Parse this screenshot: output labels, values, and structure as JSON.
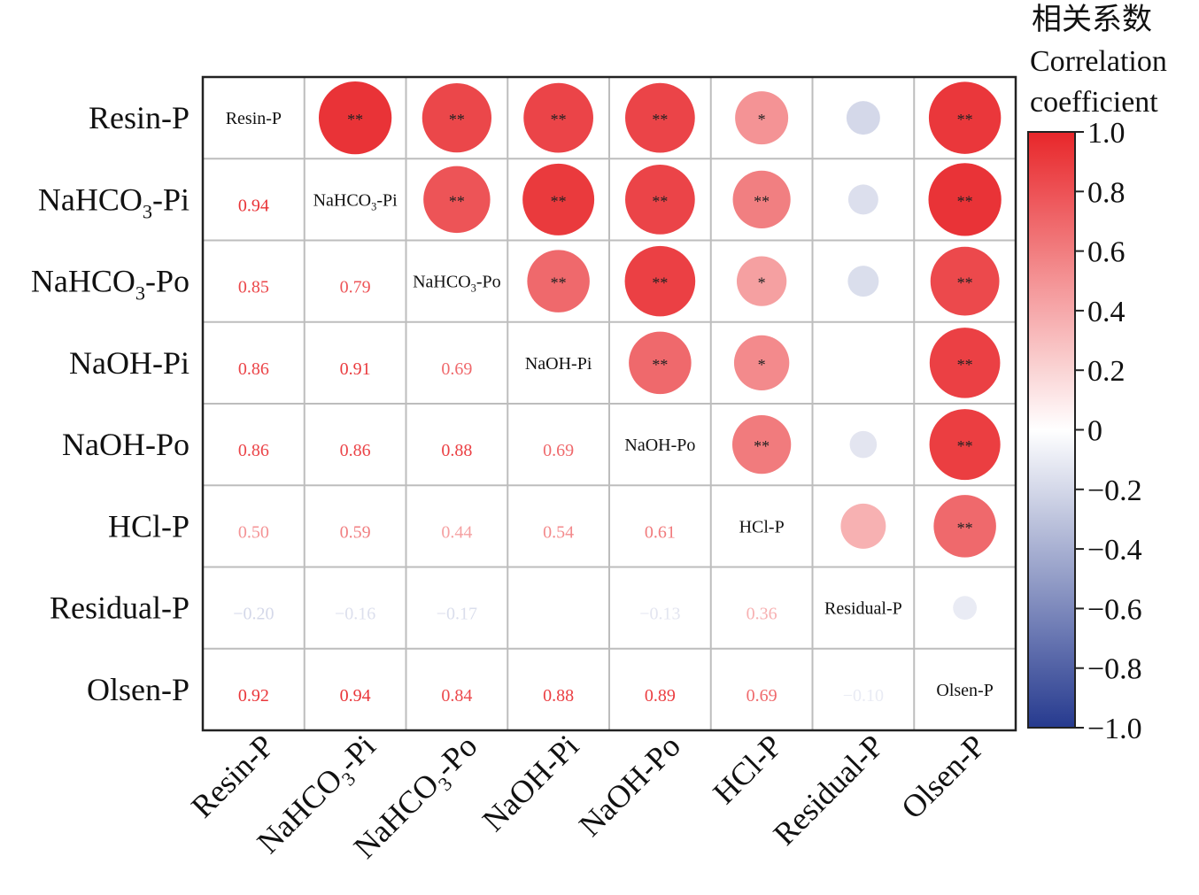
{
  "chart_data": {
    "type": "heatmap",
    "variables": [
      "Resin-P",
      "NaHCO3-Pi",
      "NaHCO3-Po",
      "NaOH-Pi",
      "NaOH-Po",
      "HCl-P",
      "Residual-P",
      "Olsen-P"
    ],
    "lower_triangle_values": [
      [
        null,
        null,
        null,
        null,
        null,
        null,
        null
      ],
      [
        0.94
      ],
      [
        0.85,
        0.79
      ],
      [
        0.86,
        0.91,
        0.69
      ],
      [
        0.86,
        0.86,
        0.88,
        0.69
      ],
      [
        0.5,
        0.59,
        0.44,
        0.54,
        0.61
      ],
      [
        -0.2,
        -0.16,
        -0.17,
        null,
        -0.13,
        0.36
      ],
      [
        0.92,
        0.94,
        0.84,
        0.88,
        0.89,
        0.69,
        -0.1
      ]
    ],
    "upper_triangle_significance": [
      [
        "",
        "**",
        "**",
        "**",
        "**",
        "*",
        "",
        "**"
      ],
      [
        "",
        "",
        "**",
        "**",
        "**",
        "**",
        "",
        "**"
      ],
      [
        "",
        "",
        "",
        "**",
        "**",
        "*",
        "",
        "**"
      ],
      [
        "",
        "",
        "",
        "",
        "**",
        "*",
        "",
        "**"
      ],
      [
        "",
        "",
        "",
        "",
        "",
        "**",
        "",
        "**"
      ],
      [
        "",
        "",
        "",
        "",
        "",
        "",
        "",
        "**"
      ],
      [
        "",
        "",
        "",
        "",
        "",
        "",
        "",
        ""
      ],
      [
        "",
        "",
        "",
        "",
        "",
        "",
        "",
        ""
      ]
    ],
    "upper_triangle_encoding": "circle size and color by correlation",
    "colorbar": {
      "title_cn": "相关系数",
      "title_en_1": "Correlation",
      "title_en_2": "coefficient",
      "range": [
        -1.0,
        1.0
      ],
      "ticks": [
        "1.0",
        "0.8",
        "0.6",
        "0.4",
        "0.2",
        "0",
        "−0.2",
        "−0.4",
        "−0.6",
        "−0.8",
        "−1.0"
      ],
      "colors": {
        "positive": "#e8262a",
        "zero": "#ffffff",
        "negative": "#263a8f"
      }
    },
    "grid": true
  }
}
